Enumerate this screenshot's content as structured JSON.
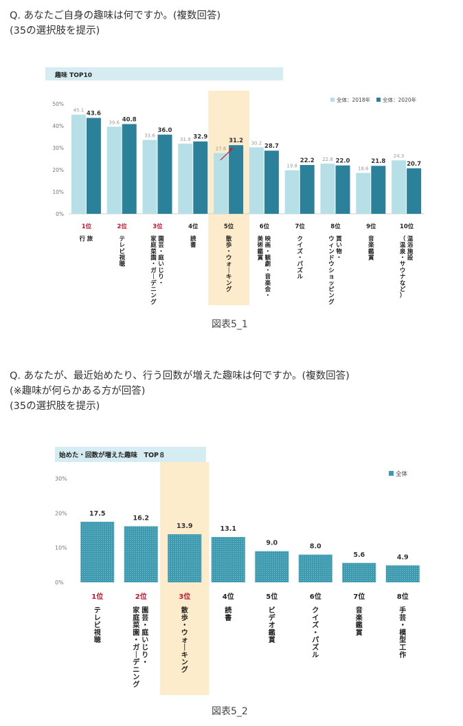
{
  "q1": {
    "lines": [
      "Q. あなたご自身の趣味は何ですか。(複数回答)",
      "(35の選択肢を提示)"
    ]
  },
  "q2": {
    "lines": [
      "Q. あなたが、最近始めたり、行う回数が増えた趣味は何ですか。(複数回答)",
      "(※趣味が何らかある方が回答)",
      "(35の選択肢を提示)"
    ]
  },
  "caption1": "図表5_1",
  "caption2": "図表5_2",
  "chart_data": [
    {
      "type": "bar",
      "title": "趣味 TOP10",
      "y_ticks": [
        "0%",
        "10%",
        "20%",
        "30%",
        "40%",
        "50%"
      ],
      "ylim": [
        0,
        50
      ],
      "highlight_index": 4,
      "ranks": [
        "1位",
        "2位",
        "3位",
        "4位",
        "5位",
        "6位",
        "7位",
        "8位",
        "9位",
        "10位"
      ],
      "red_ranks": 3,
      "categories": [
        [
          "旅",
          "行"
        ],
        [
          "テレビ視聴"
        ],
        [
          "園芸・庭いじり・",
          "家庭菜園・ガーデニング"
        ],
        [
          "読書"
        ],
        [
          "散歩・ウォーキング"
        ],
        [
          "映画・観劇・音楽会・",
          "美術鑑賞"
        ],
        [
          "クイズ・パズル"
        ],
        [
          "買い物・",
          "ウィンドウショッピング"
        ],
        [
          "音楽鑑賞"
        ],
        [
          "温浴施設",
          "（温泉・サウナなど）"
        ]
      ],
      "series": [
        {
          "name": "全体：2018年",
          "color": "#b6dfe8",
          "values": [
            45.1,
            39.6,
            33.6,
            31.9,
            27.6,
            30.2,
            19.8,
            22.8,
            18.6,
            24.3
          ]
        },
        {
          "name": "全体：2020年",
          "color": "#2b8199",
          "values": [
            43.6,
            40.8,
            36.0,
            32.9,
            31.2,
            28.7,
            22.2,
            22.0,
            21.8,
            20.7
          ]
        }
      ],
      "legend": "top-right"
    },
    {
      "type": "bar",
      "title": "始めた・回数が増えた趣味　TOP８",
      "y_ticks": [
        "0%",
        "10%",
        "20%",
        "30%"
      ],
      "ylim": [
        0,
        30
      ],
      "highlight_index": 2,
      "ranks": [
        "1位",
        "2位",
        "3位",
        "4位",
        "5位",
        "6位",
        "7位",
        "8位"
      ],
      "red_ranks": 3,
      "categories": [
        [
          "テレビ視聴"
        ],
        [
          "園芸・庭いじり・",
          "家庭菜園・ガーデニング"
        ],
        [
          "散歩・ウォーキング"
        ],
        [
          "読書"
        ],
        [
          "ビデオ鑑賞"
        ],
        [
          "クイズ・パズル"
        ],
        [
          "音楽鑑賞"
        ],
        [
          "手芸・模型工作"
        ]
      ],
      "series": [
        {
          "name": "全体",
          "color": "#3d9aaf",
          "values": [
            17.5,
            16.2,
            13.9,
            13.1,
            9.0,
            8.0,
            5.6,
            4.9
          ]
        }
      ],
      "legend": "top-right"
    }
  ]
}
